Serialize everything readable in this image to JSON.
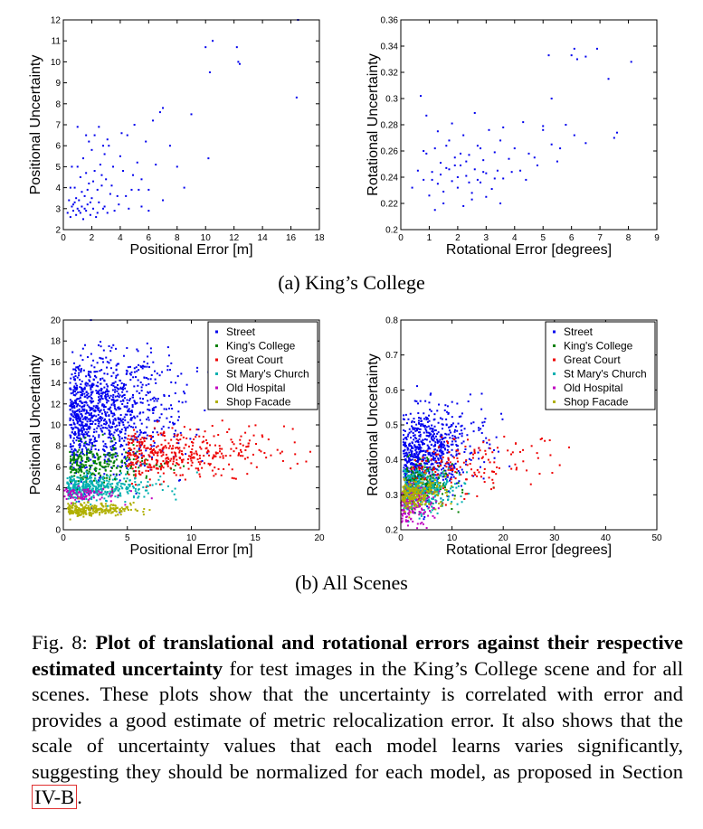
{
  "chart_data": [
    {
      "type": "scatter",
      "id": "a-pos",
      "xlabel": "Positional Error [m]",
      "ylabel": "Positional Uncertainty",
      "xlim": [
        0,
        18
      ],
      "ylim": [
        2,
        12
      ],
      "xticks": [
        0,
        2,
        4,
        6,
        8,
        10,
        12,
        14,
        16,
        18
      ],
      "yticks": [
        2,
        3,
        4,
        5,
        6,
        7,
        8,
        9,
        10,
        11,
        12
      ],
      "series": [
        {
          "color": "#0000ee",
          "points": [
            [
              0.5,
              2.6
            ],
            [
              0.6,
              3.1
            ],
            [
              0.7,
              2.9
            ],
            [
              0.8,
              3.3
            ],
            [
              0.9,
              2.7
            ],
            [
              1.0,
              3.0
            ],
            [
              1.1,
              3.4
            ],
            [
              1.2,
              2.8
            ],
            [
              1.3,
              3.1
            ],
            [
              1.4,
              2.5
            ],
            [
              1.5,
              3.6
            ],
            [
              1.6,
              2.9
            ],
            [
              1.7,
              3.2
            ],
            [
              1.8,
              4.2
            ],
            [
              1.9,
              2.7
            ],
            [
              2.0,
              3.5
            ],
            [
              2.1,
              3.0
            ],
            [
              2.2,
              4.8
            ],
            [
              2.3,
              2.6
            ],
            [
              2.4,
              3.9
            ],
            [
              2.5,
              3.3
            ],
            [
              2.6,
              5.1
            ],
            [
              2.7,
              4.1
            ],
            [
              2.8,
              3.0
            ],
            [
              2.9,
              5.6
            ],
            [
              3.0,
              4.4
            ],
            [
              3.1,
              2.8
            ],
            [
              3.2,
              6.0
            ],
            [
              3.3,
              3.7
            ],
            [
              3.5,
              5.0
            ],
            [
              0.8,
              4.0
            ],
            [
              1.0,
              5.0
            ],
            [
              1.2,
              4.5
            ],
            [
              1.4,
              5.4
            ],
            [
              1.6,
              4.7
            ],
            [
              1.8,
              6.2
            ],
            [
              2.0,
              5.8
            ],
            [
              2.2,
              6.5
            ],
            [
              2.5,
              6.9
            ],
            [
              1.0,
              6.9
            ],
            [
              0.6,
              5.0
            ],
            [
              0.5,
              4.0
            ],
            [
              1.3,
              3.8
            ],
            [
              0.9,
              3.5
            ],
            [
              1.7,
              3.9
            ],
            [
              2.1,
              4.3
            ],
            [
              2.7,
              4.6
            ],
            [
              3.4,
              4.1
            ],
            [
              3.8,
              3.6
            ],
            [
              4.0,
              5.5
            ],
            [
              4.2,
              4.8
            ],
            [
              4.5,
              6.5
            ],
            [
              4.8,
              3.9
            ],
            [
              5.0,
              7.0
            ],
            [
              5.2,
              5.2
            ],
            [
              5.5,
              4.4
            ],
            [
              5.8,
              6.2
            ],
            [
              6.0,
              3.9
            ],
            [
              6.3,
              7.2
            ],
            [
              6.5,
              5.1
            ],
            [
              6.8,
              7.6
            ],
            [
              7.0,
              7.8
            ],
            [
              7.5,
              6.0
            ],
            [
              8.0,
              5.0
            ],
            [
              8.5,
              4.0
            ],
            [
              9.0,
              7.5
            ],
            [
              10.0,
              10.7
            ],
            [
              10.5,
              11.0
            ],
            [
              10.3,
              9.5
            ],
            [
              10.2,
              5.4
            ],
            [
              12.2,
              10.7
            ],
            [
              12.3,
              10.0
            ],
            [
              12.4,
              9.9
            ],
            [
              16.5,
              12.0
            ],
            [
              16.4,
              8.3
            ],
            [
              4.6,
              3.0
            ],
            [
              3.9,
              3.2
            ],
            [
              5.5,
              3.1
            ],
            [
              7.0,
              3.4
            ],
            [
              6.0,
              2.9
            ],
            [
              4.4,
              3.6
            ],
            [
              3.6,
              2.9
            ],
            [
              2.9,
              3.1
            ],
            [
              2.4,
              2.8
            ],
            [
              1.9,
              3.3
            ],
            [
              1.5,
              3.0
            ],
            [
              1.1,
              2.9
            ],
            [
              0.7,
              3.2
            ],
            [
              0.4,
              3.4
            ],
            [
              0.3,
              2.8
            ],
            [
              4.9,
              4.6
            ],
            [
              5.3,
              3.9
            ],
            [
              4.1,
              6.6
            ],
            [
              3.1,
              6.3
            ],
            [
              2.8,
              6.0
            ],
            [
              1.6,
              6.5
            ]
          ]
        }
      ]
    },
    {
      "type": "scatter",
      "id": "a-rot",
      "xlabel": "Rotational Error [degrees]",
      "ylabel": "Rotational Uncertainty",
      "xlim": [
        0,
        9
      ],
      "ylim": [
        0.2,
        0.36
      ],
      "xticks": [
        0,
        1,
        2,
        3,
        4,
        5,
        6,
        7,
        8,
        9
      ],
      "yticks": [
        0.2,
        0.22,
        0.24,
        0.26,
        0.28,
        0.3,
        0.32,
        0.34,
        0.36
      ],
      "series": [
        {
          "color": "#0000ee",
          "points": [
            [
              0.4,
              0.232
            ],
            [
              0.6,
              0.245
            ],
            [
              0.8,
              0.238
            ],
            [
              0.9,
              0.258
            ],
            [
              1.0,
              0.226
            ],
            [
              1.1,
              0.244
            ],
            [
              1.2,
              0.262
            ],
            [
              1.3,
              0.235
            ],
            [
              1.4,
              0.251
            ],
            [
              1.5,
              0.229
            ],
            [
              1.6,
              0.247
            ],
            [
              1.7,
              0.268
            ],
            [
              1.8,
              0.237
            ],
            [
              1.9,
              0.255
            ],
            [
              2.0,
              0.232
            ],
            [
              2.1,
              0.249
            ],
            [
              2.2,
              0.272
            ],
            [
              2.3,
              0.241
            ],
            [
              2.4,
              0.257
            ],
            [
              2.5,
              0.228
            ],
            [
              2.6,
              0.246
            ],
            [
              2.7,
              0.264
            ],
            [
              2.8,
              0.236
            ],
            [
              2.9,
              0.253
            ],
            [
              3.0,
              0.243
            ],
            [
              3.1,
              0.276
            ],
            [
              3.2,
              0.231
            ],
            [
              3.3,
              0.259
            ],
            [
              3.4,
              0.245
            ],
            [
              3.5,
              0.268
            ],
            [
              3.6,
              0.239
            ],
            [
              3.8,
              0.254
            ],
            [
              4.0,
              0.262
            ],
            [
              4.2,
              0.245
            ],
            [
              4.5,
              0.258
            ],
            [
              4.8,
              0.249
            ],
            [
              5.0,
              0.276
            ],
            [
              5.3,
              0.265
            ],
            [
              5.5,
              0.252
            ],
            [
              6.0,
              0.333
            ],
            [
              6.1,
              0.338
            ],
            [
              6.2,
              0.33
            ],
            [
              6.5,
              0.332
            ],
            [
              6.9,
              0.338
            ],
            [
              7.3,
              0.315
            ],
            [
              7.5,
              0.27
            ],
            [
              7.6,
              0.274
            ],
            [
              8.1,
              0.328
            ],
            [
              5.3,
              0.3
            ],
            [
              5.2,
              0.333
            ],
            [
              6.1,
              0.272
            ],
            [
              6.5,
              0.266
            ],
            [
              0.9,
              0.287
            ],
            [
              0.7,
              0.302
            ],
            [
              1.3,
              0.275
            ],
            [
              1.8,
              0.281
            ],
            [
              2.6,
              0.289
            ],
            [
              3.6,
              0.278
            ],
            [
              4.3,
              0.282
            ],
            [
              5.0,
              0.279
            ],
            [
              1.2,
              0.215
            ],
            [
              1.5,
              0.22
            ],
            [
              2.2,
              0.218
            ],
            [
              2.5,
              0.223
            ],
            [
              3.0,
              0.225
            ],
            [
              3.5,
              0.22
            ],
            [
              1.7,
              0.246
            ],
            [
              2.0,
              0.24
            ],
            [
              2.3,
              0.252
            ],
            [
              2.7,
              0.238
            ],
            [
              1.4,
              0.242
            ],
            [
              1.9,
              0.249
            ],
            [
              2.4,
              0.236
            ],
            [
              2.9,
              0.244
            ],
            [
              3.3,
              0.239
            ],
            [
              1.1,
              0.238
            ],
            [
              0.8,
              0.26
            ],
            [
              1.6,
              0.264
            ],
            [
              2.1,
              0.258
            ],
            [
              2.8,
              0.262
            ],
            [
              3.9,
              0.244
            ],
            [
              4.4,
              0.238
            ],
            [
              4.7,
              0.255
            ],
            [
              5.6,
              0.262
            ],
            [
              5.8,
              0.28
            ]
          ]
        }
      ]
    },
    {
      "type": "scatter",
      "id": "b-pos",
      "xlabel": "Positional Error [m]",
      "ylabel": "Positional Uncertainty",
      "xlim": [
        0,
        20
      ],
      "ylim": [
        0,
        20
      ],
      "xticks": [
        0,
        5,
        10,
        15,
        20
      ],
      "yticks": [
        0,
        2,
        4,
        6,
        8,
        10,
        12,
        14,
        16,
        18,
        20
      ],
      "legend": "top-right",
      "series": [
        {
          "name": "Street",
          "color": "#0000ee"
        },
        {
          "name": "King's College",
          "color": "#008000"
        },
        {
          "name": "Great Court",
          "color": "#ee0000"
        },
        {
          "name": "St Mary's Church",
          "color": "#00b0b0"
        },
        {
          "name": "Old Hospital",
          "color": "#c000c0"
        },
        {
          "name": "Shop Facade",
          "color": "#b0b000"
        }
      ]
    },
    {
      "type": "scatter",
      "id": "b-rot",
      "xlabel": "Rotational Error [degrees]",
      "ylabel": "Rotational Uncertainty",
      "xlim": [
        0,
        50
      ],
      "ylim": [
        0.2,
        0.8
      ],
      "xticks": [
        0,
        10,
        20,
        30,
        40,
        50
      ],
      "yticks": [
        0.2,
        0.3,
        0.4,
        0.5,
        0.6,
        0.7,
        0.8
      ],
      "legend": "top-right",
      "series": [
        {
          "name": "Street",
          "color": "#0000ee"
        },
        {
          "name": "King's College",
          "color": "#008000"
        },
        {
          "name": "Great Court",
          "color": "#ee0000"
        },
        {
          "name": "St Mary's Church",
          "color": "#00b0b0"
        },
        {
          "name": "Old Hospital",
          "color": "#c000c0"
        },
        {
          "name": "Shop Facade",
          "color": "#b0b000"
        }
      ]
    }
  ],
  "subcaptions": {
    "a": "(a) King’s College",
    "b": "(b) All Scenes"
  },
  "caption": {
    "prefix": "Fig. 8: ",
    "bold": "Plot of translational and rotational errors against their respective estimated uncertainty",
    "rest": " for test images in the King’s College scene and for all scenes. These plots show that the uncertainty is correlated with error and provides a good estimate of metric relocalization error. It also shows that the scale of uncertainty values that each model learns varies significantly, suggesting they should be normalized for each model, as proposed in Section ",
    "ref": "IV-B",
    "end": "."
  }
}
